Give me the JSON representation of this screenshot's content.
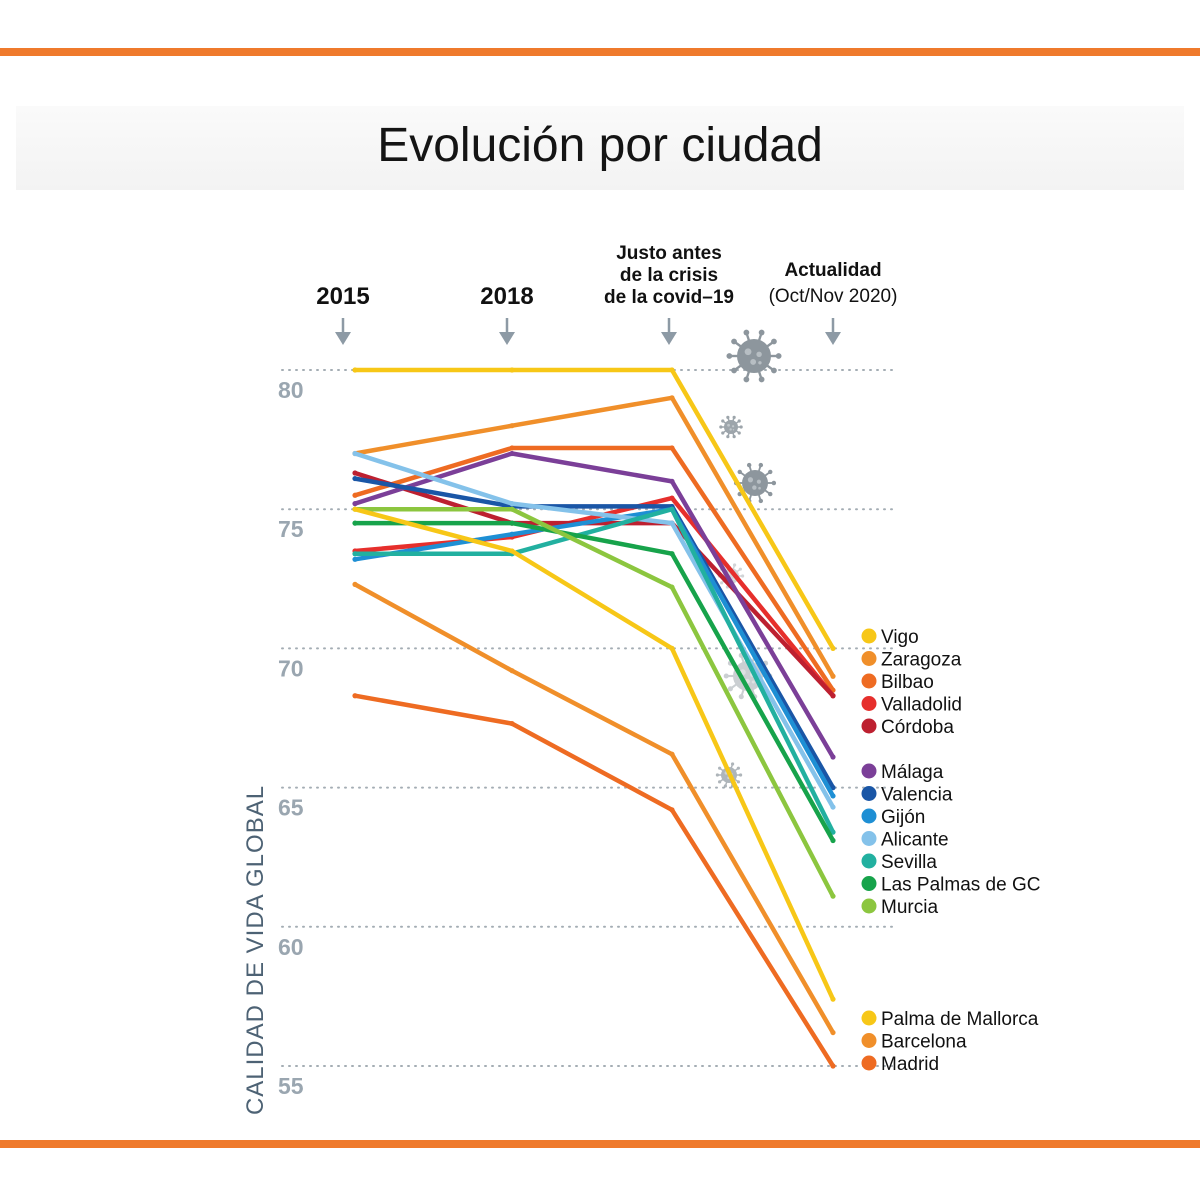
{
  "page": {
    "title": "Evolución por ciudad"
  },
  "colors": {
    "accent_bar": "#ef7a2c",
    "axis_text": "#9aa6b0",
    "ylabel_text": "#4d6274",
    "virus": "#8d969d"
  },
  "chart_data": {
    "type": "line",
    "title": "Evolución por ciudad",
    "ylabel": "CALIDAD DE VIDA GLOBAL",
    "ylim": [
      55,
      80
    ],
    "yticks": [
      80,
      75,
      70,
      65,
      60,
      55
    ],
    "grid": "dotted lines at y = 80, 75, 70, 65, 60, 55",
    "columns": [
      {
        "label": "2015",
        "sublabel": ""
      },
      {
        "label": "2018",
        "sublabel": ""
      },
      {
        "label": "Justo antes de la crisis de la covid–19",
        "lines": [
          "Justo antes",
          "de la crisis",
          "de la covid–19"
        ]
      },
      {
        "label": "Actualidad",
        "sublabel": "(Oct/Nov 2020)"
      }
    ],
    "x": [
      "2015",
      "2018",
      "Justo antes de la crisis de la covid–19",
      "Actualidad (Oct/Nov 2020)"
    ],
    "series": [
      {
        "name": "Vigo",
        "color": "#f7c717",
        "values": [
          80.0,
          80.0,
          80.0,
          70.0
        ]
      },
      {
        "name": "Zaragoza",
        "color": "#f08f2a",
        "values": [
          77.0,
          78.0,
          79.0,
          69.0
        ]
      },
      {
        "name": "Bilbao",
        "color": "#ee6b22",
        "values": [
          75.5,
          77.2,
          77.2,
          68.5
        ]
      },
      {
        "name": "Valladolid",
        "color": "#e62f2c",
        "values": [
          73.5,
          74.0,
          75.4,
          68.3
        ]
      },
      {
        "name": "Córdoba",
        "color": "#bd2030",
        "values": [
          76.3,
          74.5,
          74.5,
          68.3
        ]
      },
      {
        "name": "Málaga",
        "color": "#7b3f98",
        "values": [
          75.2,
          77.0,
          76.0,
          66.1
        ]
      },
      {
        "name": "Valencia",
        "color": "#1a56a6",
        "values": [
          76.1,
          75.1,
          75.1,
          65.0
        ]
      },
      {
        "name": "Gijón",
        "color": "#1e8fd4",
        "values": [
          73.2,
          74.1,
          75.0,
          64.7
        ]
      },
      {
        "name": "Alicante",
        "color": "#84c2ea",
        "values": [
          77.0,
          75.2,
          74.5,
          64.3
        ]
      },
      {
        "name": "Sevilla",
        "color": "#22b0a0",
        "values": [
          73.4,
          73.4,
          75.0,
          63.4
        ]
      },
      {
        "name": "Las Palmas de GC",
        "color": "#17a34b",
        "values": [
          74.5,
          74.5,
          73.4,
          63.1
        ]
      },
      {
        "name": "Murcia",
        "color": "#8cc63f",
        "values": [
          75.0,
          75.0,
          72.2,
          61.1
        ]
      },
      {
        "name": "Palma de Mallorca",
        "color": "#f7c717",
        "values": [
          75.0,
          73.5,
          70.0,
          57.4
        ]
      },
      {
        "name": "Barcelona",
        "color": "#f08f2a",
        "values": [
          72.3,
          69.2,
          66.2,
          56.2
        ]
      },
      {
        "name": "Madrid",
        "color": "#ee6b22",
        "values": [
          68.3,
          67.3,
          64.2,
          55.0
        ]
      }
    ],
    "legend": {
      "placement": "right",
      "groups": [
        [
          "Vigo",
          "Zaragoza",
          "Bilbao",
          "Valladolid",
          "Córdoba"
        ],
        [
          "Málaga",
          "Valencia",
          "Gijón",
          "Alicante",
          "Sevilla",
          "Las Palmas de GC",
          "Murcia"
        ],
        [
          "Palma de Mallorca",
          "Barcelona",
          "Madrid"
        ]
      ]
    },
    "annotations": [
      "virus-icon"
    ]
  }
}
